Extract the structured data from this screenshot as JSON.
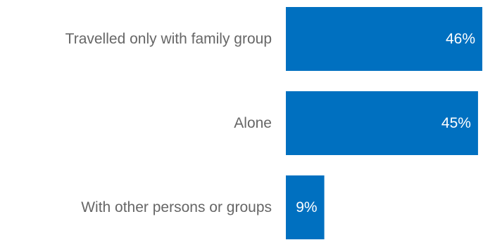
{
  "chart_data": {
    "type": "bar",
    "orientation": "horizontal",
    "categories": [
      "Travelled only with family group",
      "Alone",
      "With other persons or groups"
    ],
    "values": [
      46,
      45,
      9
    ],
    "value_labels": [
      "46%",
      "45%",
      "9%"
    ],
    "unit": "%",
    "xlim": [
      0,
      46
    ],
    "grid": false,
    "legend": "none",
    "colors": {
      "bar": "#0070C0",
      "label_text": "#666666",
      "value_text": "#ffffff"
    }
  }
}
